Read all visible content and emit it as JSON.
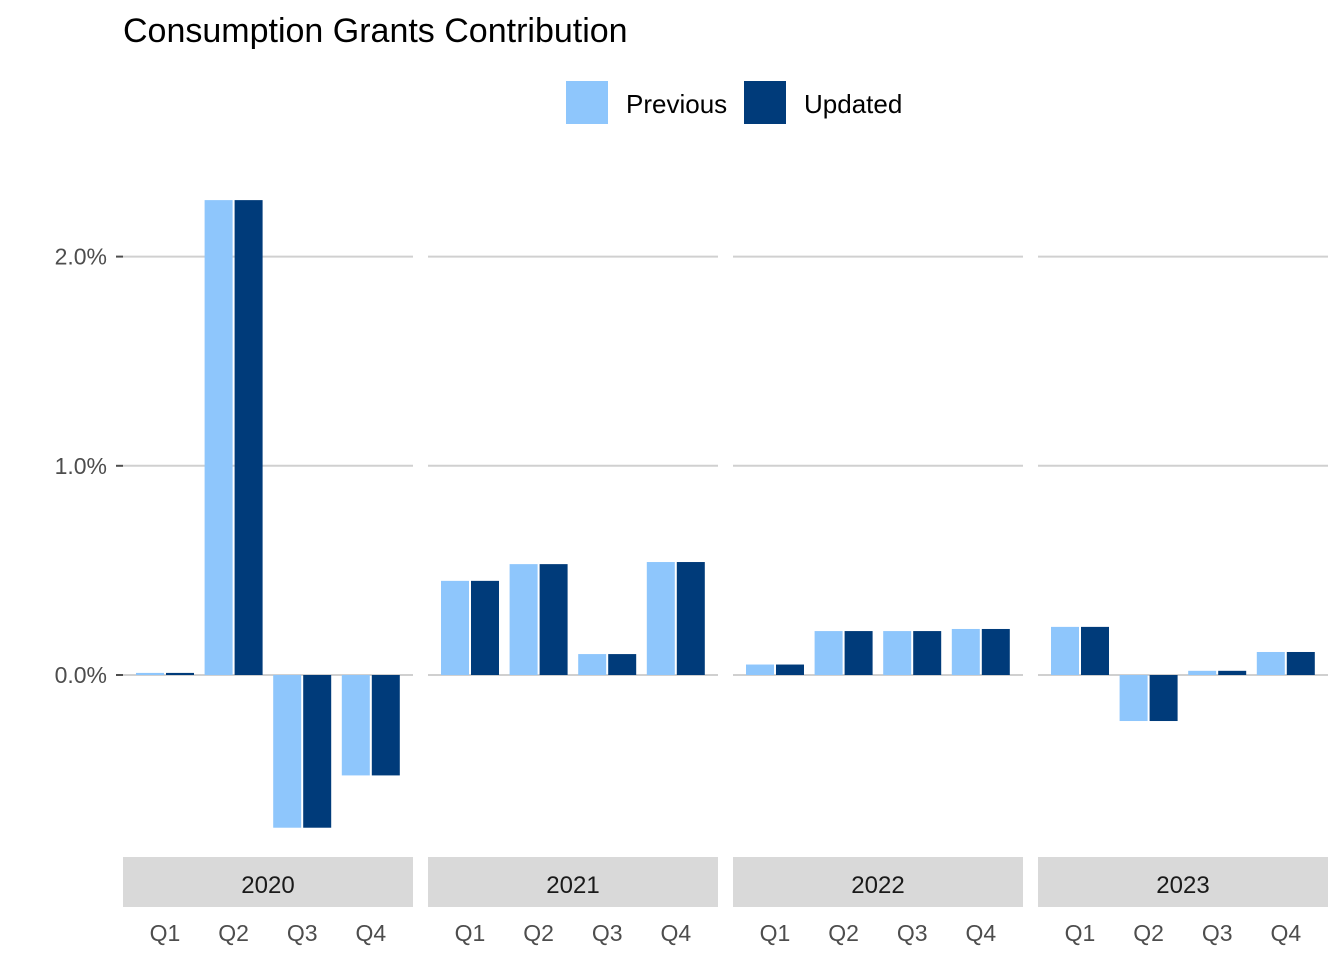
{
  "chart_data": {
    "type": "bar",
    "title": "Consumption Grants Contribution",
    "xlabel": "",
    "ylabel": "",
    "ylim": [
      -0.85,
      2.6
    ],
    "yticks": [
      0.0,
      1.0,
      2.0
    ],
    "ytick_labels": [
      "0.0%",
      "1.0%",
      "2.0%"
    ],
    "grid": "horizontal major",
    "legend_position": "top",
    "colors": {
      "Previous": "#8ec6fc",
      "Updated": "#003b7a"
    },
    "categories": [
      "Q1",
      "Q2",
      "Q3",
      "Q4"
    ],
    "series_order": [
      "Previous",
      "Updated"
    ],
    "panels": [
      {
        "year": "2020",
        "series": [
          {
            "name": "Previous",
            "values": [
              0.01,
              2.27,
              -0.73,
              -0.48
            ]
          },
          {
            "name": "Updated",
            "values": [
              0.01,
              2.27,
              -0.73,
              -0.48
            ]
          }
        ]
      },
      {
        "year": "2021",
        "series": [
          {
            "name": "Previous",
            "values": [
              0.45,
              0.53,
              0.1,
              0.54
            ]
          },
          {
            "name": "Updated",
            "values": [
              0.45,
              0.53,
              0.1,
              0.54
            ]
          }
        ]
      },
      {
        "year": "2022",
        "series": [
          {
            "name": "Previous",
            "values": [
              0.05,
              0.21,
              0.21,
              0.22
            ]
          },
          {
            "name": "Updated",
            "values": [
              0.05,
              0.21,
              0.21,
              0.22
            ]
          }
        ]
      },
      {
        "year": "2023",
        "series": [
          {
            "name": "Previous",
            "values": [
              0.23,
              -0.22,
              0.02,
              0.11
            ]
          },
          {
            "name": "Updated",
            "values": [
              0.23,
              -0.22,
              0.02,
              0.11
            ]
          }
        ]
      }
    ]
  }
}
